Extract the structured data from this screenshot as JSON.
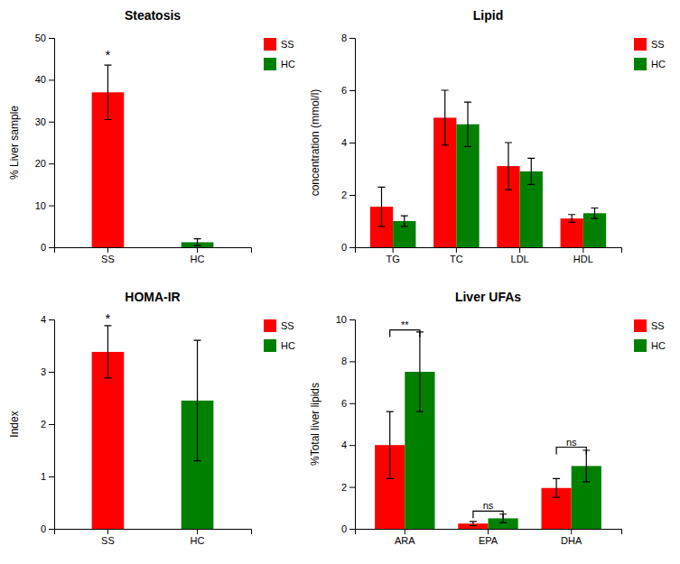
{
  "chart_data": [
    {
      "type": "bar",
      "title": "Steatosis",
      "ylabel": "% Liver sample",
      "categories": [
        "SS",
        "HC"
      ],
      "series": [
        {
          "name": "SS",
          "color": "#ff0000",
          "values": [
            37.0,
            null
          ],
          "errors": [
            6.5,
            null
          ]
        },
        {
          "name": "HC",
          "color": "#008000",
          "values": [
            null,
            1.2
          ],
          "errors": [
            null,
            0.8
          ]
        }
      ],
      "ylim": [
        0,
        50
      ],
      "yticks": [
        0,
        10,
        20,
        30,
        40,
        50
      ],
      "legend": "right",
      "annotations": [
        {
          "text": "*",
          "x": "SS",
          "y": 44.5
        }
      ]
    },
    {
      "type": "bar",
      "title": "Lipid",
      "ylabel": "concentration (mmol/l)",
      "categories": [
        "TG",
        "TC",
        "LDL",
        "HDL"
      ],
      "series": [
        {
          "name": "SS",
          "color": "#ff0000",
          "values": [
            1.55,
            4.95,
            3.1,
            1.1
          ],
          "errors": [
            0.75,
            1.05,
            0.9,
            0.15
          ]
        },
        {
          "name": "HC",
          "color": "#008000",
          "values": [
            1.0,
            4.7,
            2.9,
            1.3
          ],
          "errors": [
            0.2,
            0.85,
            0.5,
            0.2
          ]
        }
      ],
      "ylim": [
        0,
        8
      ],
      "yticks": [
        0,
        2,
        4,
        6,
        8
      ],
      "legend": "right"
    },
    {
      "type": "bar",
      "title": "HOMA-IR",
      "ylabel": "Index",
      "categories": [
        "SS",
        "HC"
      ],
      "series": [
        {
          "name": "SS",
          "color": "#ff0000",
          "values": [
            3.38,
            null
          ],
          "errors": [
            0.5,
            null
          ]
        },
        {
          "name": "HC",
          "color": "#008000",
          "values": [
            null,
            2.45
          ],
          "errors": [
            null,
            1.15
          ]
        }
      ],
      "ylim": [
        0,
        4
      ],
      "yticks": [
        0,
        1,
        2,
        3,
        4
      ],
      "legend": "right",
      "annotations": [
        {
          "text": "*",
          "x": "SS",
          "y": 3.9
        }
      ]
    },
    {
      "type": "bar",
      "title": "Liver UFAs",
      "ylabel": "%Total liver lipids",
      "categories": [
        "ARA",
        "EPA",
        "DHA"
      ],
      "series": [
        {
          "name": "SS",
          "color": "#ff0000",
          "values": [
            4.0,
            0.25,
            1.95
          ],
          "errors": [
            1.6,
            0.1,
            0.45
          ]
        },
        {
          "name": "HC",
          "color": "#008000",
          "values": [
            7.5,
            0.5,
            3.0
          ],
          "errors": [
            1.9,
            0.2,
            0.75
          ]
        }
      ],
      "ylim": [
        0,
        10
      ],
      "yticks": [
        0,
        2,
        4,
        6,
        8,
        10
      ],
      "legend": "right",
      "annotations": [
        {
          "text": "**",
          "x": "ARA",
          "y": 9.5
        },
        {
          "text": "ns",
          "x": "EPA",
          "y": 0.85
        },
        {
          "text": "ns",
          "x": "DHA",
          "y": 3.9
        }
      ]
    }
  ]
}
